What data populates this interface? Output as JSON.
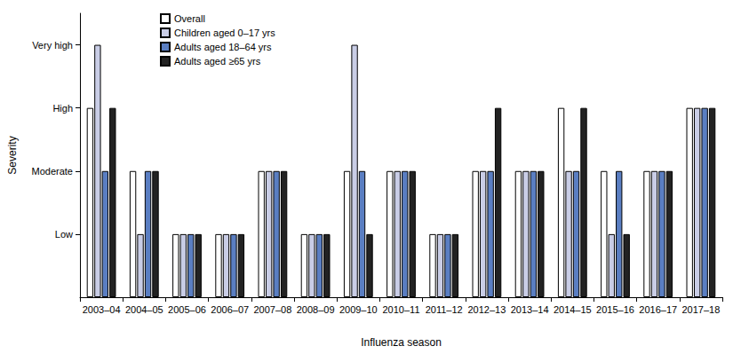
{
  "chart_data": {
    "type": "bar",
    "x_label": "Influenza season",
    "y_label": "Severity",
    "categories": [
      "2003–04",
      "2004–05",
      "2005–06",
      "2006–07",
      "2007–08",
      "2008–09",
      "2009–10",
      "2010–11",
      "2011–12",
      "2012–13",
      "2013–14",
      "2014–15",
      "2015–16",
      "2016–17",
      "2017–18"
    ],
    "series": [
      {
        "name": "Overall",
        "color": "#ffffff",
        "values": [
          3,
          2,
          1,
          1,
          2,
          1,
          2,
          2,
          1,
          2,
          2,
          3,
          2,
          2,
          3
        ]
      },
      {
        "name": "Children aged 0–17 yrs",
        "color": "#c9cde6",
        "values": [
          4,
          1,
          1,
          1,
          2,
          1,
          4,
          2,
          1,
          2,
          2,
          2,
          1,
          2,
          3
        ]
      },
      {
        "name": "Adults aged 18–64 yrs",
        "color": "#5a7ec2",
        "values": [
          2,
          2,
          1,
          1,
          2,
          1,
          2,
          2,
          1,
          2,
          2,
          2,
          2,
          2,
          3
        ]
      },
      {
        "name": "Adults aged ≥65 yrs",
        "color": "#222222",
        "values": [
          3,
          2,
          1,
          1,
          2,
          1,
          1,
          2,
          1,
          3,
          2,
          3,
          1,
          2,
          3
        ]
      }
    ],
    "ylim": [
      0,
      4.5
    ],
    "yticks": [
      {
        "value": 1,
        "label": "Low"
      },
      {
        "value": 2,
        "label": "Moderate"
      },
      {
        "value": 3,
        "label": "High"
      },
      {
        "value": 4,
        "label": "Very high"
      }
    ],
    "legend": "top-left",
    "grid": false
  }
}
